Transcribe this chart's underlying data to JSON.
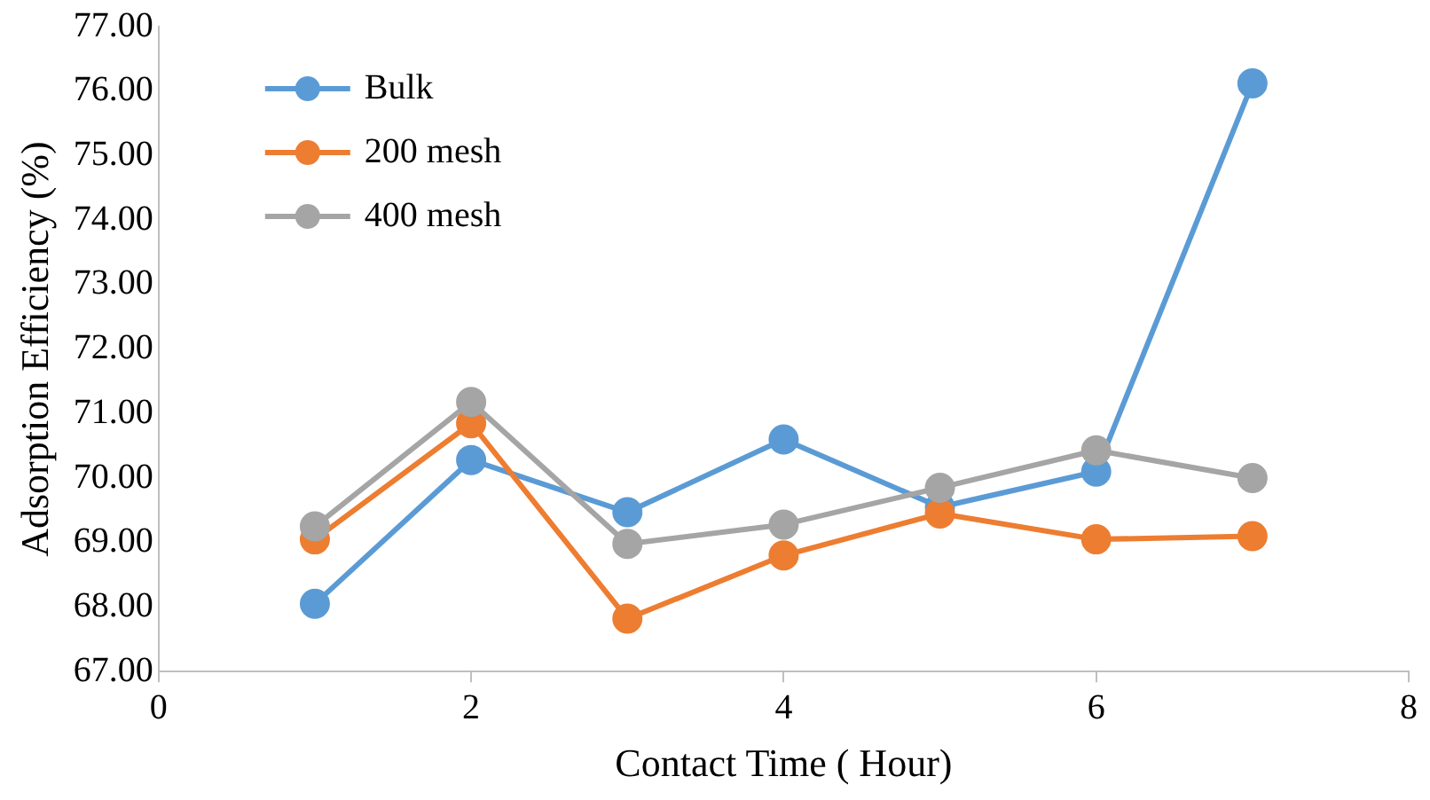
{
  "chart_data": {
    "type": "line",
    "xlabel": "Contact Time ( Hour)",
    "ylabel": "Adsorption Efficiency (%)",
    "x": [
      1,
      2,
      3,
      4,
      5,
      6,
      7
    ],
    "series": [
      {
        "name": "Bulk",
        "color": "#5b9bd5",
        "values": [
          68.05,
          70.28,
          69.47,
          70.6,
          69.55,
          70.1,
          76.12
        ]
      },
      {
        "name": "200 mesh",
        "color": "#ed7d31",
        "values": [
          69.05,
          70.85,
          67.82,
          68.8,
          69.45,
          69.05,
          69.1
        ]
      },
      {
        "name": "400 mesh",
        "color": "#a5a5a5",
        "values": [
          69.25,
          71.18,
          68.98,
          69.28,
          69.85,
          70.43,
          70.0
        ]
      }
    ],
    "xlim": [
      0,
      8
    ],
    "xticks": [
      0,
      2,
      4,
      6,
      8
    ],
    "ylim": [
      67,
      77
    ],
    "yticks": [
      {
        "value": 67,
        "label": "67.00"
      },
      {
        "value": 68,
        "label": "68.00"
      },
      {
        "value": 69,
        "label": "69.00"
      },
      {
        "value": 70,
        "label": "70.00"
      },
      {
        "value": 71,
        "label": "71.00"
      },
      {
        "value": 72,
        "label": "72.00"
      },
      {
        "value": 73,
        "label": "73.00"
      },
      {
        "value": 74,
        "label": "74.00"
      },
      {
        "value": 75,
        "label": "75.00"
      },
      {
        "value": 76,
        "label": "76.00"
      },
      {
        "value": 77,
        "label": "77.00"
      }
    ],
    "grid": false,
    "legend": "top left",
    "marker": "circle",
    "line_style": "solid"
  }
}
